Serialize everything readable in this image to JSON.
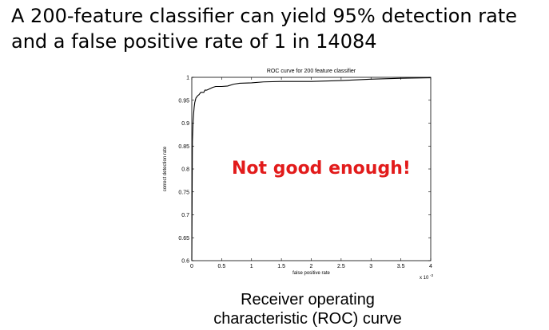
{
  "slide": {
    "headline": "A 200-feature classifier can yield 95% detection rate and a false positive rate of 1 in 14084",
    "alert": "Not good enough!",
    "caption_line1": "Receiver operating",
    "caption_line2": "characteristic (ROC) curve",
    "alert_color": "#e21b1b"
  },
  "chart_data": {
    "type": "line",
    "title": "ROC curve for 200 feature classifier",
    "xlabel": "false positive rate",
    "ylabel": "correct detection rate",
    "x_multiplier_label": "x 10",
    "x_multiplier_exp": "-3",
    "xlim": [
      0,
      0.004
    ],
    "ylim": [
      0.6,
      1
    ],
    "x_tick_labels": [
      "0",
      "0.5",
      "1",
      "1.5",
      "2",
      "2.5",
      "3",
      "3.5",
      "4"
    ],
    "y_tick_labels": [
      "0.6",
      "0.65",
      "0.7",
      "0.75",
      "0.8",
      "0.85",
      "0.9",
      "0.95",
      "1"
    ],
    "grid": false,
    "series": [
      {
        "x": [
          0,
          1e-05,
          2e-05,
          3e-05,
          4e-05,
          5e-05,
          7e-05,
          0.0001,
          0.00012,
          0.00015,
          0.0002,
          0.00022,
          0.00025,
          0.0003,
          0.00035,
          0.0004,
          0.0005,
          0.0006,
          0.0007,
          0.0008,
          0.001,
          0.0012,
          0.0015,
          0.002,
          0.0025,
          0.003,
          0.0035,
          0.004
        ],
        "y": [
          0.6,
          0.86,
          0.9,
          0.92,
          0.935,
          0.945,
          0.955,
          0.96,
          0.962,
          0.967,
          0.967,
          0.972,
          0.972,
          0.975,
          0.978,
          0.98,
          0.98,
          0.981,
          0.985,
          0.987,
          0.988,
          0.99,
          0.991,
          0.991,
          0.993,
          0.996,
          0.998,
          0.999
        ]
      }
    ]
  }
}
